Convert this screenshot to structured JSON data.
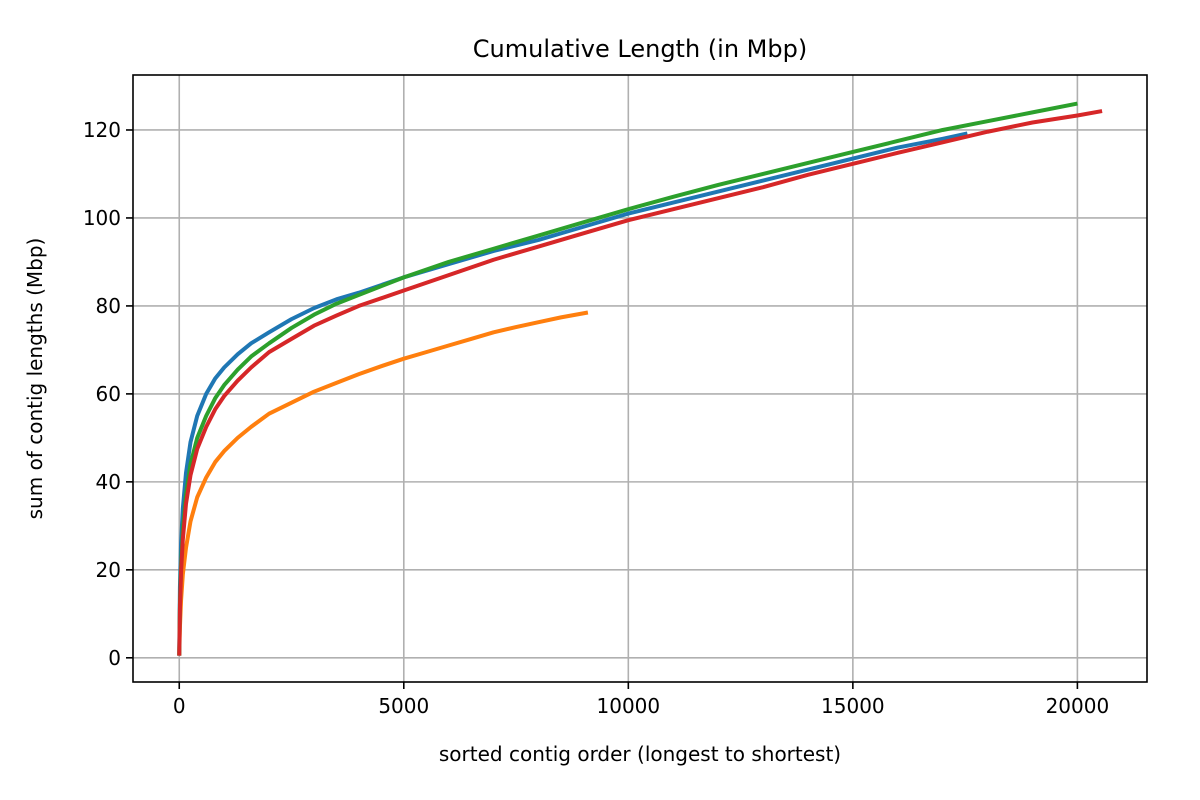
{
  "chart_data": {
    "type": "line",
    "title": "Cumulative Length (in Mbp)",
    "xlabel": "sorted contig order (longest to shortest)",
    "ylabel": "sum of contig lengths (Mbp)",
    "xlim": [
      -1030,
      21550
    ],
    "ylim": [
      -5.5,
      132.5
    ],
    "xticks": [
      0,
      5000,
      10000,
      15000,
      20000
    ],
    "yticks": [
      0,
      20,
      40,
      60,
      80,
      100,
      120
    ],
    "grid": true,
    "legend": "none",
    "series": [
      {
        "color": "#1f77b4",
        "x": [
          0,
          15,
          40,
          80,
          150,
          250,
          400,
          600,
          800,
          1000,
          1300,
          1600,
          2000,
          2500,
          3000,
          3500,
          4000,
          5000,
          6000,
          7000,
          8000,
          9000,
          10000,
          11000,
          12000,
          13000,
          14000,
          15000,
          16000,
          17000,
          17550
        ],
        "y": [
          0.5,
          16,
          26,
          34,
          42,
          49,
          55,
          60,
          63.5,
          66,
          69,
          71.5,
          74,
          77,
          79.5,
          81.5,
          83,
          86.5,
          89.5,
          92.5,
          95,
          98,
          101,
          103.5,
          106,
          108.5,
          111,
          113.5,
          116,
          118,
          119.2
        ]
      },
      {
        "color": "#ff7f0e",
        "x": [
          0,
          15,
          40,
          80,
          150,
          250,
          400,
          600,
          800,
          1000,
          1300,
          1600,
          2000,
          2500,
          3000,
          3500,
          4000,
          4500,
          5000,
          5500,
          6000,
          6500,
          7000,
          7500,
          8000,
          8500,
          9100
        ],
        "y": [
          0.5,
          7,
          13,
          19,
          25,
          31,
          36.5,
          41,
          44.5,
          47,
          50,
          52.5,
          55.5,
          58,
          60.5,
          62.5,
          64.5,
          66.3,
          68,
          69.5,
          71,
          72.5,
          74,
          75.2,
          76.3,
          77.4,
          78.5
        ]
      },
      {
        "color": "#2ca02c",
        "x": [
          0,
          15,
          40,
          80,
          150,
          250,
          400,
          600,
          800,
          1000,
          1300,
          1600,
          2000,
          2500,
          3000,
          3500,
          4000,
          5000,
          6000,
          7000,
          8000,
          9000,
          10000,
          11000,
          12000,
          13000,
          14000,
          15000,
          16000,
          17000,
          18000,
          19000,
          20000
        ],
        "y": [
          0.5,
          12,
          21,
          29,
          37,
          44,
          50,
          55,
          59,
          62,
          65.5,
          68.5,
          71.5,
          75,
          78,
          80.5,
          82.5,
          86.5,
          90,
          93,
          96,
          99,
          102,
          104.8,
          107.5,
          110,
          112.5,
          115,
          117.5,
          120,
          122,
          124,
          126
        ]
      },
      {
        "color": "#d62728",
        "x": [
          0,
          15,
          40,
          80,
          150,
          250,
          400,
          600,
          800,
          1000,
          1300,
          1600,
          2000,
          2500,
          3000,
          3500,
          4000,
          5000,
          6000,
          7000,
          8000,
          9000,
          10000,
          11000,
          12000,
          13000,
          14000,
          15000,
          16000,
          17000,
          18000,
          19000,
          20000,
          20550
        ],
        "y": [
          0.5,
          11,
          19.5,
          27,
          35,
          41.5,
          47.5,
          52.5,
          56.5,
          59.5,
          63,
          66,
          69.5,
          72.5,
          75.5,
          77.8,
          80,
          83.5,
          87,
          90.5,
          93.5,
          96.5,
          99.5,
          102,
          104.5,
          107,
          109.8,
          112.3,
          114.8,
          117.2,
          119.6,
          121.7,
          123.3,
          124.3
        ]
      }
    ]
  }
}
